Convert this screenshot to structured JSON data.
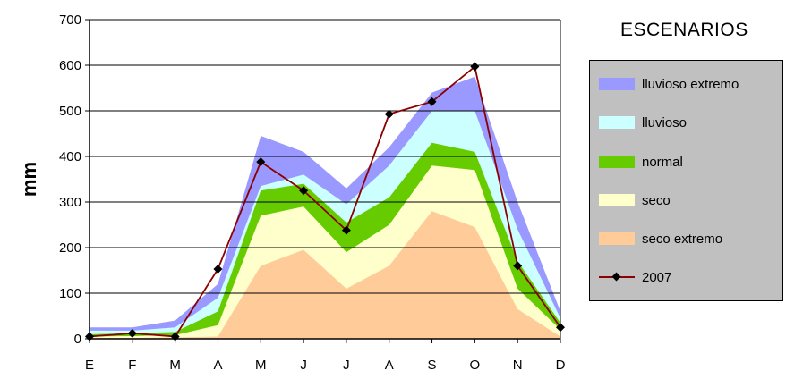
{
  "chart_data": {
    "type": "area",
    "categories": [
      "E",
      "F",
      "M",
      "A",
      "M",
      "J",
      "J",
      "A",
      "S",
      "O",
      "N",
      "D"
    ],
    "ylabel": "mm",
    "ylim": [
      0,
      700
    ],
    "yticks": [
      0,
      100,
      200,
      300,
      400,
      500,
      600,
      700
    ],
    "grid": true,
    "legend_title": "ESCENARIOS",
    "legend_position": "right",
    "series": [
      {
        "name": "lluvioso extremo",
        "color": "#9999ff",
        "values": [
          25,
          25,
          40,
          120,
          445,
          410,
          330,
          420,
          540,
          575,
          300,
          60
        ]
      },
      {
        "name": "lluvioso",
        "color": "#ccffff",
        "values": [
          18,
          18,
          25,
          90,
          335,
          360,
          295,
          380,
          500,
          500,
          240,
          45
        ]
      },
      {
        "name": "normal",
        "color": "#66cc00",
        "values": [
          10,
          12,
          15,
          60,
          325,
          340,
          255,
          310,
          430,
          410,
          170,
          35
        ]
      },
      {
        "name": "seco",
        "color": "#ffffcc",
        "values": [
          5,
          6,
          8,
          30,
          270,
          290,
          190,
          250,
          380,
          370,
          110,
          20
        ]
      },
      {
        "name": "seco extremo",
        "color": "#ffcc99",
        "values": [
          2,
          2,
          3,
          5,
          160,
          195,
          110,
          160,
          280,
          245,
          65,
          5
        ]
      }
    ],
    "line_series": {
      "name": "2007",
      "color": "#8b0000",
      "marker": "diamond",
      "values": [
        5,
        12,
        5,
        153,
        388,
        325,
        238,
        493,
        520,
        597,
        160,
        25
      ]
    }
  }
}
